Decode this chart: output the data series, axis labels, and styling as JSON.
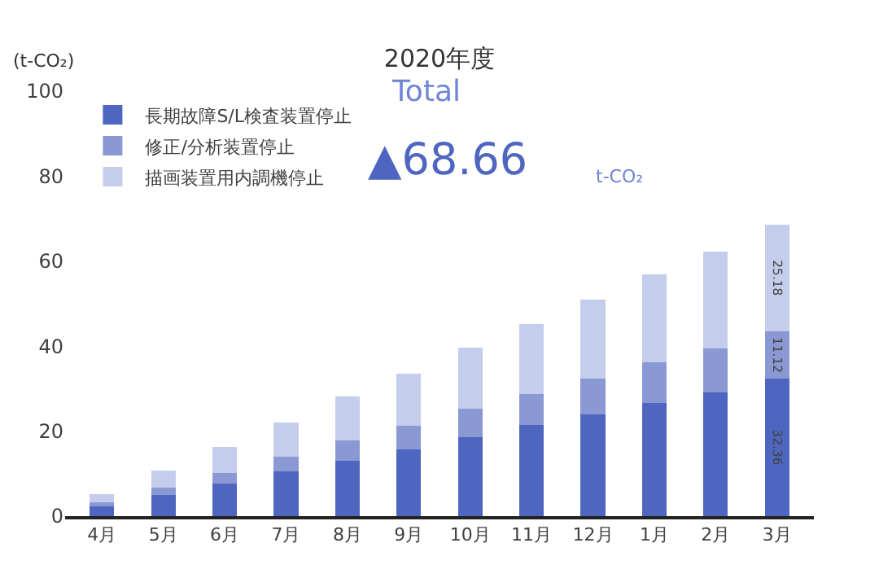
{
  "chart_data": {
    "type": "bar",
    "title": "2020年度",
    "ylabel": "(t-CO₂)",
    "stacked": true,
    "categories": [
      "4月",
      "5月",
      "6月",
      "7月",
      "8月",
      "9月",
      "10月",
      "11月",
      "12月",
      "1月",
      "2月",
      "3月"
    ],
    "series": [
      {
        "name": "長期故障S/L検査装置停止",
        "color": "#4f66c0",
        "values": [
          2.3,
          4.9,
          7.6,
          10.5,
          13.1,
          15.8,
          18.6,
          21.4,
          24.0,
          26.7,
          29.2,
          32.36
        ],
        "value_labels": [
          null,
          null,
          null,
          null,
          null,
          null,
          null,
          null,
          null,
          null,
          null,
          "32.36"
        ]
      },
      {
        "name": "修正/分析装置停止",
        "color": "#8a99d4",
        "values": [
          0.9,
          1.8,
          2.5,
          3.5,
          4.7,
          5.5,
          6.6,
          7.4,
          8.3,
          9.5,
          10.3,
          11.12
        ],
        "value_labels": [
          null,
          null,
          null,
          null,
          null,
          null,
          null,
          null,
          null,
          null,
          null,
          "11.12"
        ]
      },
      {
        "name": "描画装置用内調機停止",
        "color": "#c5cdec",
        "values": [
          2.0,
          4.0,
          6.2,
          8.0,
          10.4,
          12.3,
          14.5,
          16.5,
          18.7,
          20.7,
          22.8,
          25.18
        ],
        "value_labels": [
          null,
          null,
          null,
          null,
          null,
          null,
          null,
          null,
          null,
          null,
          null,
          "25.18"
        ]
      }
    ],
    "ylim": [
      0,
      100
    ],
    "yticks": [
      0,
      20,
      40,
      60,
      80,
      100
    ],
    "grid": false,
    "legend": "top left",
    "annotations": [
      "Total",
      "▲68.66",
      "t-CO₂"
    ]
  }
}
